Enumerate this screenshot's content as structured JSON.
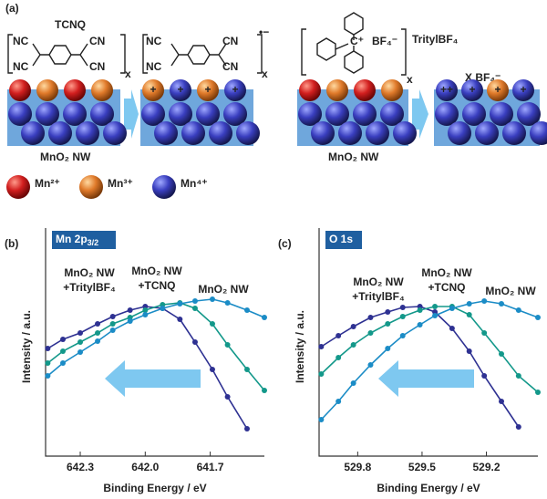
{
  "panel_a": {
    "label": "(a)",
    "tcnq": "TCNQ",
    "nc": "NC",
    "cn": "CN",
    "x": "x",
    "charge": "•−",
    "trityl_counter": "BF₄⁻",
    "trityl_name": "TritylBF₄",
    "carbocation": "C⁺",
    "xbf4": "X BF₄⁻",
    "nw": "MnO₂ NW",
    "signs_tcnq": [
      "+",
      "+",
      "+",
      "+"
    ],
    "signs_trityl": [
      "++",
      "+",
      "+",
      "+"
    ],
    "legend": [
      "Mn²⁺",
      "Mn³⁺",
      "Mn⁴⁺"
    ]
  },
  "chart_data": [
    {
      "type": "line",
      "panel_label": "(b)",
      "box_label": {
        "main": "Mn 2p",
        "sub": "3/2"
      },
      "xlabel": "Binding Energy / eV",
      "ylabel": "Intensity / a.u.",
      "xlim": [
        642.46,
        641.45
      ],
      "ylim": [
        0,
        100
      ],
      "xticks": [
        642.3,
        {
          "value": 642.0,
          "label": "642.0"
        },
        641.7
      ],
      "series": [
        {
          "label_lines": [
            "MnO₂ NW",
            "+TritylBF₄"
          ],
          "color": "#2e3192",
          "x": [
            642.45,
            642.38,
            642.3,
            642.22,
            642.15,
            642.07,
            642.0,
            641.92,
            641.84,
            641.77,
            641.69,
            641.62,
            641.53
          ],
          "values": [
            47.2,
            51.2,
            54,
            58,
            61.2,
            64,
            65.6,
            64.8,
            60,
            50,
            38,
            26,
            12
          ]
        },
        {
          "label_lines": [
            "MnO₂ NW",
            "+TCNQ"
          ],
          "color": "#13988a",
          "x": [
            642.45,
            642.38,
            642.3,
            642.22,
            642.15,
            642.07,
            642.0,
            641.92,
            641.84,
            641.77,
            641.69,
            641.62,
            641.53,
            641.45
          ],
          "values": [
            40.8,
            46,
            50,
            54,
            58,
            60.8,
            64,
            66.4,
            67.2,
            64.8,
            58,
            48.8,
            38,
            28.8
          ]
        },
        {
          "label_lines": [
            "MnO₂ NW"
          ],
          "color": "#1b8cc6",
          "x": [
            642.45,
            642.38,
            642.3,
            642.22,
            642.15,
            642.07,
            642.0,
            641.92,
            641.84,
            641.77,
            641.69,
            641.62,
            641.53,
            641.45
          ],
          "values": [
            35.2,
            40.8,
            45.6,
            50.4,
            55.2,
            59.2,
            62,
            64.8,
            66.8,
            68,
            68.8,
            67.2,
            64,
            60.8
          ]
        }
      ]
    },
    {
      "type": "line",
      "panel_label": "(c)",
      "box_label": {
        "main": "O 1s"
      },
      "xlabel": "Binding Energy / eV",
      "ylabel": "Intensity / a.u.",
      "xlim": [
        529.98,
        528.96
      ],
      "ylim": [
        0,
        100
      ],
      "xticks": [
        529.8,
        529.5,
        529.2
      ],
      "series": [
        {
          "label_lines": [
            "MnO₂ NW",
            "+TritylBF₄"
          ],
          "color": "#2e3192",
          "x": [
            529.97,
            529.89,
            529.82,
            529.74,
            529.66,
            529.59,
            529.51,
            529.44,
            529.36,
            529.28,
            529.21,
            529.13,
            529.05
          ],
          "values": [
            48,
            52.8,
            56.8,
            60.8,
            63.2,
            65.2,
            65.6,
            63.2,
            56,
            46,
            35.2,
            24,
            12.8
          ]
        },
        {
          "label_lines": [
            "MnO₂ NW",
            "+TCNQ"
          ],
          "color": "#13988a",
          "x": [
            529.97,
            529.89,
            529.82,
            529.74,
            529.66,
            529.59,
            529.51,
            529.44,
            529.36,
            529.28,
            529.21,
            529.13,
            529.05,
            528.96
          ],
          "values": [
            36,
            43.2,
            48.8,
            54,
            58,
            61.2,
            64,
            65.6,
            65.6,
            62,
            54,
            44.8,
            35.2,
            28
          ]
        },
        {
          "label_lines": [
            "MnO₂ NW"
          ],
          "color": "#1b8cc6",
          "x": [
            529.97,
            529.89,
            529.82,
            529.74,
            529.66,
            529.59,
            529.51,
            529.44,
            529.36,
            529.28,
            529.21,
            529.13,
            529.05,
            528.96
          ],
          "values": [
            16,
            24,
            32,
            40,
            47.2,
            52.8,
            57.6,
            61.6,
            64.8,
            66.8,
            68,
            66.8,
            64,
            60.8
          ]
        }
      ]
    }
  ]
}
